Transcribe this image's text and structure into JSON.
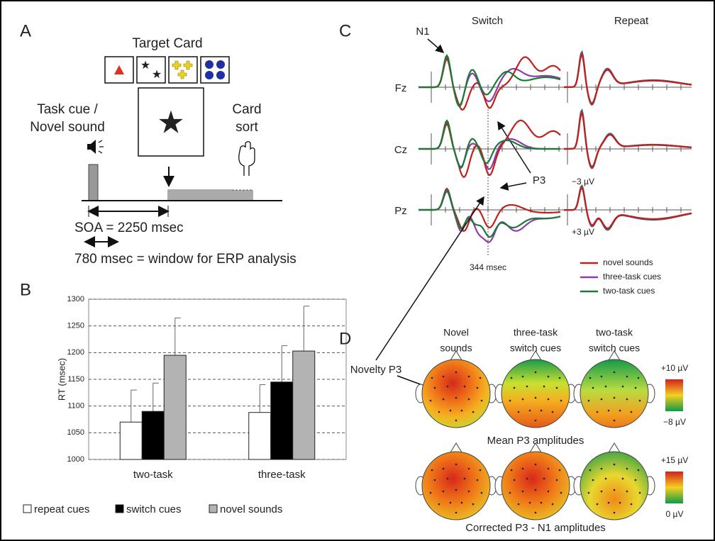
{
  "panel_a": {
    "letter": "A",
    "target_card": "Target Card",
    "task_cue": [
      "Task cue /",
      "Novel sound"
    ],
    "card_sort": [
      "Card",
      "sort"
    ],
    "soa": "SOA = 2250 msec",
    "window": "780 msec = window for ERP analysis"
  },
  "chart_data": {
    "type": "bar",
    "letter": "B",
    "y_label": "RT (msec)",
    "categories": [
      "two-task",
      "three-task"
    ],
    "series": [
      {
        "name": "repeat cues",
        "color": "#ffffff",
        "values": [
          1070,
          1088
        ],
        "errors": [
          60,
          52
        ]
      },
      {
        "name": "switch cues",
        "color": "#000000",
        "values": [
          1090,
          1145
        ],
        "errors": [
          53,
          68
        ]
      },
      {
        "name": "novel sounds",
        "color": "#b3b3b3",
        "values": [
          1195,
          1203
        ],
        "errors": [
          70,
          84
        ]
      }
    ],
    "ylim": [
      1000,
      1300
    ],
    "yticks": [
      1000,
      1050,
      1100,
      1150,
      1200,
      1250,
      1300
    ],
    "grid": true
  },
  "panel_c": {
    "letter": "C",
    "switch": "Switch",
    "repeat": "Repeat",
    "n1": "N1",
    "channels": [
      "Fz",
      "Cz",
      "Pz"
    ],
    "p3": "P3",
    "minus": "−3 µV",
    "plus": "+3 µV",
    "time": "344 msec",
    "legend": [
      {
        "name": "novel sounds",
        "color": "#c0201c"
      },
      {
        "name": "three-task cues",
        "color": "#8e3ca8"
      },
      {
        "name": "two-task cues",
        "color": "#1a7a3a"
      }
    ]
  },
  "panel_d": {
    "letter": "D",
    "columns": [
      [
        "Novel",
        "sounds"
      ],
      [
        "three-task",
        "switch cues"
      ],
      [
        "two-task",
        "switch cues"
      ]
    ],
    "novelty_p3": "Novelty P3",
    "scale1": [
      "+10 µV",
      "−8 µV"
    ],
    "row1": "Mean P3 amplitudes",
    "scale2": [
      "+15 µV",
      "0 µV"
    ],
    "row2": "Corrected P3 - N1 amplitudes"
  }
}
